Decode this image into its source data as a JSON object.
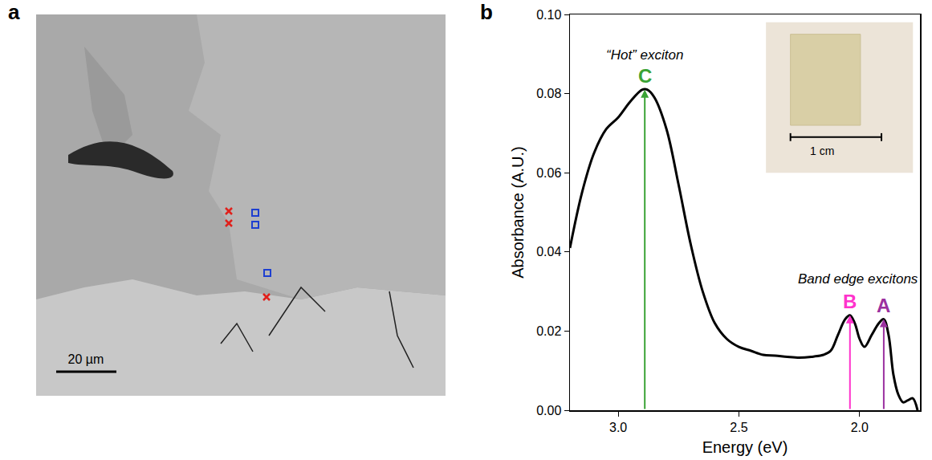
{
  "panel_a": {
    "label": "a",
    "scale_bar": "20 µm"
  },
  "chart_data": {
    "type": "line",
    "panel_label": "b",
    "x_label": "Energy (eV)",
    "y_label": "Absorbance (A.U.)",
    "x": [
      3.2,
      3.15,
      3.1,
      3.05,
      3.0,
      2.95,
      2.9,
      2.88,
      2.85,
      2.8,
      2.75,
      2.7,
      2.65,
      2.6,
      2.55,
      2.5,
      2.45,
      2.4,
      2.35,
      2.3,
      2.25,
      2.2,
      2.15,
      2.12,
      2.09,
      2.06,
      2.04,
      2.02,
      2.0,
      1.98,
      1.95,
      1.92,
      1.9,
      1.88,
      1.86,
      1.84,
      1.82,
      1.8,
      1.78,
      1.76
    ],
    "series": [
      {
        "color": "#000000",
        "values": [
          0.041,
          0.055,
          0.065,
          0.071,
          0.074,
          0.078,
          0.081,
          0.081,
          0.079,
          0.071,
          0.057,
          0.042,
          0.03,
          0.022,
          0.018,
          0.016,
          0.015,
          0.014,
          0.0138,
          0.0135,
          0.0133,
          0.0135,
          0.014,
          0.015,
          0.019,
          0.023,
          0.024,
          0.022,
          0.018,
          0.016,
          0.019,
          0.022,
          0.023,
          0.019,
          0.009,
          0.004,
          0.002,
          0.0025,
          0.003,
          0.0
        ]
      }
    ],
    "xlim": [
      3.2,
      1.75
    ],
    "xticks": [
      {
        "value": 3.0,
        "label": "3.0"
      },
      {
        "value": 2.5,
        "label": "2.5"
      },
      {
        "value": 2.0,
        "label": "2.0"
      }
    ],
    "ylim": [
      0,
      0.1
    ],
    "yticks": [
      {
        "value": 0,
        "label": "0.00"
      },
      {
        "value": 0.02,
        "label": "0.02"
      },
      {
        "value": 0.04,
        "label": "0.04"
      },
      {
        "value": 0.06,
        "label": "0.06"
      },
      {
        "value": 0.08,
        "label": "0.08"
      },
      {
        "value": 0.1,
        "label": "0.10"
      }
    ],
    "grid": false,
    "peaks": [
      {
        "label": "C",
        "energy": 2.89,
        "absorbance": 0.081,
        "color": "#3aa335"
      },
      {
        "label": "B",
        "energy": 2.04,
        "absorbance": 0.024,
        "color": "#ff33cc"
      },
      {
        "label": "A",
        "energy": 1.9,
        "absorbance": 0.023,
        "color": "#9b30a0"
      }
    ],
    "annotations": [
      "“Hot” exciton",
      "Band edge excitons"
    ],
    "inset": {
      "scale_bar": "1 cm"
    }
  }
}
